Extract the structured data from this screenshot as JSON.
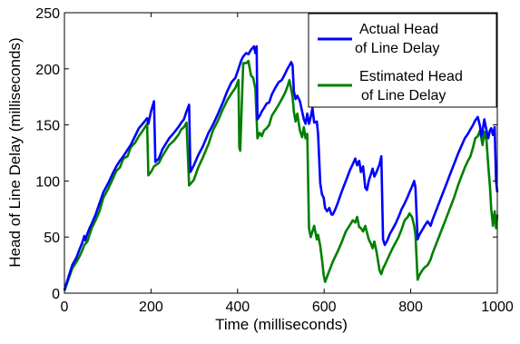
{
  "chart_data": {
    "type": "line",
    "xlabel": "Time (milliseconds)",
    "ylabel": "Head of Line Delay (milliseconds)",
    "xlim": [
      0,
      1000
    ],
    "ylim": [
      0,
      250
    ],
    "xticks": [
      "0",
      "200",
      "400",
      "600",
      "800",
      "1000"
    ],
    "yticks": [
      "0",
      "50",
      "100",
      "150",
      "200",
      "250"
    ],
    "grid": false,
    "legend_position": "top-right",
    "series": [
      {
        "name": "Actual Head of Line Delay",
        "color": "#0000ff",
        "points": [
          [
            0,
            3
          ],
          [
            18,
            25
          ],
          [
            28,
            32
          ],
          [
            34,
            38
          ],
          [
            41,
            45
          ],
          [
            46,
            51
          ],
          [
            48,
            47
          ],
          [
            53,
            53
          ],
          [
            58,
            58
          ],
          [
            63,
            62
          ],
          [
            72,
            70
          ],
          [
            81,
            80
          ],
          [
            90,
            90
          ],
          [
            101,
            98
          ],
          [
            112,
            107
          ],
          [
            120,
            113
          ],
          [
            128,
            118
          ],
          [
            136,
            122
          ],
          [
            146,
            128
          ],
          [
            153,
            132
          ],
          [
            163,
            140
          ],
          [
            172,
            147
          ],
          [
            183,
            152
          ],
          [
            191,
            156
          ],
          [
            194,
            151
          ],
          [
            200,
            162
          ],
          [
            207,
            171
          ],
          [
            210,
            117
          ],
          [
            218,
            120
          ],
          [
            226,
            128
          ],
          [
            234,
            133
          ],
          [
            242,
            138
          ],
          [
            253,
            143
          ],
          [
            263,
            148
          ],
          [
            270,
            152
          ],
          [
            276,
            155
          ],
          [
            282,
            162
          ],
          [
            288,
            168
          ],
          [
            291,
            108
          ],
          [
            299,
            114
          ],
          [
            309,
            123
          ],
          [
            320,
            131
          ],
          [
            333,
            143
          ],
          [
            343,
            150
          ],
          [
            355,
            160
          ],
          [
            366,
            170
          ],
          [
            376,
            180
          ],
          [
            386,
            188
          ],
          [
            395,
            192
          ],
          [
            402,
            200
          ],
          [
            408,
            207
          ],
          [
            413,
            211
          ],
          [
            420,
            214
          ],
          [
            425,
            213
          ],
          [
            431,
            217
          ],
          [
            438,
            220
          ],
          [
            441,
            214
          ],
          [
            444,
            220
          ],
          [
            446,
            155
          ],
          [
            451,
            158
          ],
          [
            456,
            162
          ],
          [
            461,
            165
          ],
          [
            467,
            169
          ],
          [
            473,
            170
          ],
          [
            479,
            177
          ],
          [
            487,
            183
          ],
          [
            495,
            188
          ],
          [
            502,
            190
          ],
          [
            509,
            195
          ],
          [
            515,
            200
          ],
          [
            520,
            203
          ],
          [
            524,
            206
          ],
          [
            527,
            203
          ],
          [
            530,
            180
          ],
          [
            534,
            173
          ],
          [
            538,
            176
          ],
          [
            544,
            171
          ],
          [
            549,
            162
          ],
          [
            553,
            155
          ],
          [
            557,
            151
          ],
          [
            561,
            160
          ],
          [
            565,
            151
          ],
          [
            569,
            157
          ],
          [
            573,
            165
          ],
          [
            577,
            152
          ],
          [
            583,
            153
          ],
          [
            586,
            142
          ],
          [
            591,
            98
          ],
          [
            595,
            88
          ],
          [
            599,
            85
          ],
          [
            602,
            76
          ],
          [
            607,
            73
          ],
          [
            612,
            76
          ],
          [
            617,
            70
          ],
          [
            620,
            70
          ],
          [
            626,
            75
          ],
          [
            631,
            80
          ],
          [
            640,
            90
          ],
          [
            650,
            100
          ],
          [
            660,
            110
          ],
          [
            666,
            115
          ],
          [
            672,
            120
          ],
          [
            676,
            114
          ],
          [
            681,
            118
          ],
          [
            685,
            108
          ],
          [
            690,
            113
          ],
          [
            695,
            94
          ],
          [
            699,
            92
          ],
          [
            703,
            100
          ],
          [
            708,
            106
          ],
          [
            712,
            111
          ],
          [
            716,
            104
          ],
          [
            721,
            108
          ],
          [
            728,
            115
          ],
          [
            732,
            122
          ],
          [
            736,
            48
          ],
          [
            740,
            43
          ],
          [
            746,
            47
          ],
          [
            752,
            53
          ],
          [
            758,
            57
          ],
          [
            765,
            62
          ],
          [
            772,
            68
          ],
          [
            779,
            75
          ],
          [
            786,
            80
          ],
          [
            793,
            86
          ],
          [
            797,
            90
          ],
          [
            803,
            95
          ],
          [
            808,
            100
          ],
          [
            811,
            94
          ],
          [
            816,
            48
          ],
          [
            820,
            52
          ],
          [
            826,
            56
          ],
          [
            832,
            60
          ],
          [
            839,
            64
          ],
          [
            846,
            60
          ],
          [
            850,
            65
          ],
          [
            860,
            75
          ],
          [
            870,
            85
          ],
          [
            880,
            95
          ],
          [
            890,
            105
          ],
          [
            900,
            115
          ],
          [
            910,
            125
          ],
          [
            918,
            132
          ],
          [
            925,
            138
          ],
          [
            932,
            142
          ],
          [
            938,
            146
          ],
          [
            944,
            150
          ],
          [
            949,
            154
          ],
          [
            955,
            157
          ],
          [
            960,
            149
          ],
          [
            963,
            140
          ],
          [
            966,
            145
          ],
          [
            970,
            155
          ],
          [
            975,
            145
          ],
          [
            979,
            138
          ],
          [
            983,
            145
          ],
          [
            986,
            147
          ],
          [
            990,
            141
          ],
          [
            994,
            148
          ],
          [
            997,
            100
          ],
          [
            1000,
            90
          ]
        ]
      },
      {
        "name": "Estimated Head of Line Delay",
        "color": "#007f00",
        "points": [
          [
            0,
            2
          ],
          [
            18,
            22
          ],
          [
            28,
            28
          ],
          [
            34,
            32
          ],
          [
            41,
            38
          ],
          [
            46,
            43
          ],
          [
            53,
            46
          ],
          [
            58,
            52
          ],
          [
            63,
            58
          ],
          [
            72,
            65
          ],
          [
            81,
            73
          ],
          [
            90,
            85
          ],
          [
            101,
            93
          ],
          [
            112,
            102
          ],
          [
            120,
            109
          ],
          [
            128,
            112
          ],
          [
            136,
            120
          ],
          [
            146,
            122
          ],
          [
            153,
            130
          ],
          [
            163,
            134
          ],
          [
            172,
            140
          ],
          [
            183,
            146
          ],
          [
            191,
            151
          ],
          [
            194,
            105
          ],
          [
            200,
            108
          ],
          [
            207,
            113
          ],
          [
            218,
            116
          ],
          [
            226,
            122
          ],
          [
            234,
            127
          ],
          [
            242,
            132
          ],
          [
            253,
            136
          ],
          [
            263,
            141
          ],
          [
            270,
            146
          ],
          [
            276,
            148
          ],
          [
            282,
            152
          ],
          [
            288,
            96
          ],
          [
            299,
            101
          ],
          [
            309,
            112
          ],
          [
            320,
            121
          ],
          [
            333,
            133
          ],
          [
            343,
            145
          ],
          [
            355,
            154
          ],
          [
            366,
            164
          ],
          [
            376,
            172
          ],
          [
            386,
            178
          ],
          [
            395,
            183
          ],
          [
            402,
            190
          ],
          [
            404,
            130
          ],
          [
            406,
            127
          ],
          [
            413,
            205
          ],
          [
            420,
            205
          ],
          [
            425,
            207
          ],
          [
            431,
            194
          ],
          [
            436,
            192
          ],
          [
            441,
            182
          ],
          [
            446,
            138
          ],
          [
            451,
            143
          ],
          [
            456,
            140
          ],
          [
            461,
            145
          ],
          [
            467,
            147
          ],
          [
            473,
            150
          ],
          [
            479,
            158
          ],
          [
            487,
            163
          ],
          [
            495,
            168
          ],
          [
            502,
            173
          ],
          [
            509,
            178
          ],
          [
            515,
            184
          ],
          [
            520,
            190
          ],
          [
            527,
            175
          ],
          [
            530,
            162
          ],
          [
            534,
            153
          ],
          [
            538,
            160
          ],
          [
            544,
            145
          ],
          [
            549,
            139
          ],
          [
            553,
            148
          ],
          [
            557,
            138
          ],
          [
            561,
            142
          ],
          [
            565,
            58
          ],
          [
            569,
            50
          ],
          [
            573,
            55
          ],
          [
            577,
            60
          ],
          [
            583,
            48
          ],
          [
            586,
            52
          ],
          [
            591,
            42
          ],
          [
            595,
            30
          ],
          [
            599,
            16
          ],
          [
            602,
            10
          ],
          [
            607,
            15
          ],
          [
            612,
            20
          ],
          [
            617,
            25
          ],
          [
            620,
            28
          ],
          [
            626,
            33
          ],
          [
            631,
            37
          ],
          [
            640,
            45
          ],
          [
            650,
            55
          ],
          [
            660,
            61
          ],
          [
            666,
            65
          ],
          [
            672,
            63
          ],
          [
            676,
            68
          ],
          [
            681,
            59
          ],
          [
            685,
            58
          ],
          [
            690,
            55
          ],
          [
            695,
            60
          ],
          [
            699,
            54
          ],
          [
            703,
            48
          ],
          [
            708,
            44
          ],
          [
            712,
            40
          ],
          [
            716,
            46
          ],
          [
            721,
            37
          ],
          [
            728,
            20
          ],
          [
            732,
            17
          ],
          [
            736,
            22
          ],
          [
            740,
            25
          ],
          [
            746,
            30
          ],
          [
            752,
            35
          ],
          [
            758,
            40
          ],
          [
            765,
            45
          ],
          [
            772,
            50
          ],
          [
            779,
            57
          ],
          [
            786,
            65
          ],
          [
            793,
            68
          ],
          [
            797,
            71
          ],
          [
            803,
            68
          ],
          [
            808,
            60
          ],
          [
            811,
            52
          ],
          [
            816,
            12
          ],
          [
            820,
            16
          ],
          [
            826,
            20
          ],
          [
            832,
            23
          ],
          [
            839,
            25
          ],
          [
            846,
            30
          ],
          [
            850,
            35
          ],
          [
            860,
            45
          ],
          [
            870,
            55
          ],
          [
            880,
            65
          ],
          [
            890,
            75
          ],
          [
            900,
            85
          ],
          [
            910,
            97
          ],
          [
            918,
            105
          ],
          [
            925,
            112
          ],
          [
            932,
            118
          ],
          [
            938,
            122
          ],
          [
            944,
            130
          ],
          [
            949,
            138
          ],
          [
            955,
            140
          ],
          [
            960,
            145
          ],
          [
            963,
            138
          ],
          [
            966,
            132
          ],
          [
            970,
            144
          ],
          [
            975,
            136
          ],
          [
            979,
            114
          ],
          [
            983,
            95
          ],
          [
            986,
            75
          ],
          [
            990,
            60
          ],
          [
            994,
            73
          ],
          [
            997,
            58
          ],
          [
            1000,
            70
          ]
        ]
      }
    ]
  }
}
